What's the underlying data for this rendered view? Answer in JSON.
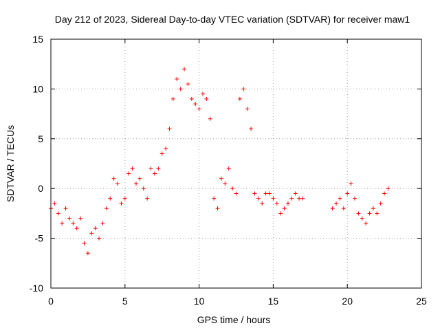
{
  "chart_data": {
    "type": "scatter",
    "title": "Day 212 of 2023, Sidereal Day-to-day VTEC variation (SDTVAR) for receiver maw1",
    "xlabel": "GPS time / hours",
    "ylabel": "SDTVAR / TECUs",
    "xlim": [
      0,
      25
    ],
    "ylim": [
      -10,
      15
    ],
    "xticks": [
      0,
      5,
      10,
      15,
      20,
      25
    ],
    "yticks": [
      -10,
      -5,
      0,
      5,
      10,
      15
    ],
    "grid": true,
    "marker": "plus",
    "marker_color": "#ff0000",
    "series": [
      {
        "name": "SDTVAR",
        "x": [
          0.0,
          0.25,
          0.5,
          0.75,
          1.0,
          1.25,
          1.5,
          1.75,
          2.0,
          2.25,
          2.5,
          2.75,
          3.0,
          3.25,
          3.5,
          3.75,
          4.0,
          4.25,
          4.5,
          4.75,
          5.0,
          5.25,
          5.5,
          5.75,
          6.0,
          6.25,
          6.5,
          6.75,
          7.0,
          7.25,
          7.5,
          7.75,
          8.0,
          8.25,
          8.5,
          8.75,
          9.0,
          9.25,
          9.5,
          9.75,
          10.0,
          10.25,
          10.5,
          10.75,
          11.0,
          11.25,
          11.5,
          11.75,
          12.0,
          12.25,
          12.5,
          12.75,
          13.0,
          13.25,
          13.5,
          13.75,
          14.0,
          14.25,
          14.5,
          14.75,
          15.0,
          15.25,
          15.5,
          15.75,
          16.0,
          16.25,
          16.5,
          16.75,
          17.0,
          19.0,
          19.25,
          19.5,
          19.75,
          20.0,
          20.25,
          20.5,
          20.75,
          21.0,
          21.25,
          21.5,
          21.75,
          22.0,
          22.25,
          22.5,
          22.75
        ],
        "y": [
          -2.0,
          -1.5,
          -2.5,
          -3.5,
          -2.0,
          -3.0,
          -3.5,
          -4.0,
          -3.0,
          -5.5,
          -6.5,
          -4.5,
          -4.0,
          -5.0,
          -3.5,
          -2.0,
          -1.0,
          1.0,
          0.5,
          -1.5,
          -1.0,
          1.5,
          2.0,
          0.5,
          1.0,
          0.0,
          -1.0,
          2.0,
          1.5,
          2.0,
          3.5,
          4.0,
          6.0,
          9.0,
          11.0,
          10.0,
          12.0,
          10.5,
          9.0,
          8.5,
          8.0,
          9.5,
          9.0,
          7.0,
          -1.0,
          -2.0,
          1.0,
          0.5,
          2.0,
          0.0,
          -0.5,
          9.0,
          10.0,
          8.0,
          6.0,
          -0.5,
          -1.0,
          -1.5,
          -0.5,
          -0.5,
          -1.0,
          -1.5,
          -2.5,
          -2.0,
          -1.5,
          -1.0,
          -0.5,
          -1.0,
          -1.0,
          -2.0,
          -1.5,
          -1.0,
          -2.0,
          -0.5,
          0.5,
          -1.0,
          -2.5,
          -3.0,
          -3.5,
          -2.5,
          -2.0,
          -2.5,
          -1.5,
          -0.5,
          0.0
        ]
      }
    ]
  }
}
